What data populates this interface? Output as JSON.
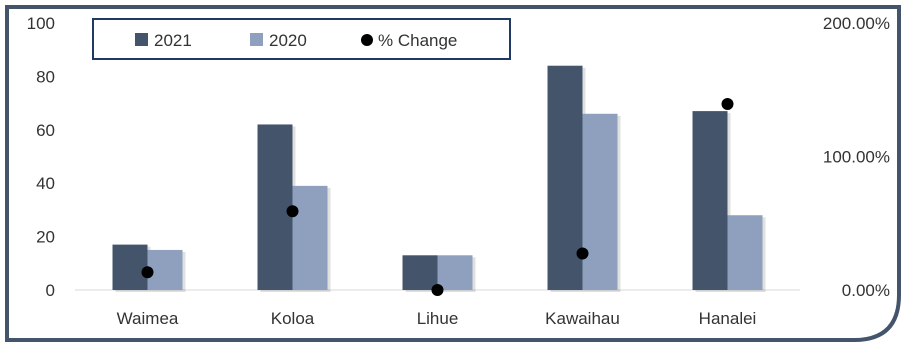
{
  "colors": {
    "series_2021": "#44546a",
    "series_2020": "#8ea0bd",
    "marker": "#000000",
    "frame": "#44546a",
    "legend_border": "#1f3864"
  },
  "chart_data": {
    "type": "bar",
    "categories": [
      "Waimea",
      "Koloa",
      "Lihue",
      "Kawaihau",
      "Hanalei"
    ],
    "series": [
      {
        "name": "2021",
        "axis": "left",
        "kind": "bar",
        "values": [
          17,
          62,
          13,
          84,
          67
        ]
      },
      {
        "name": "2020",
        "axis": "left",
        "kind": "bar",
        "values": [
          15,
          39,
          13,
          66,
          28
        ]
      },
      {
        "name": "% Change",
        "axis": "right",
        "kind": "scatter",
        "values": [
          13.3,
          59.0,
          0.0,
          27.3,
          139.3
        ]
      }
    ],
    "y_left": {
      "ticks": [
        "0",
        "20",
        "40",
        "60",
        "80",
        "100"
      ],
      "range": [
        0,
        100
      ]
    },
    "y_right": {
      "ticks": [
        "0.00%",
        "100.00%",
        "200.00%"
      ],
      "range": [
        0,
        200
      ]
    },
    "legend": {
      "position": "top-left",
      "entries": [
        "2021",
        "2020",
        "% Change"
      ]
    },
    "grid": false
  }
}
